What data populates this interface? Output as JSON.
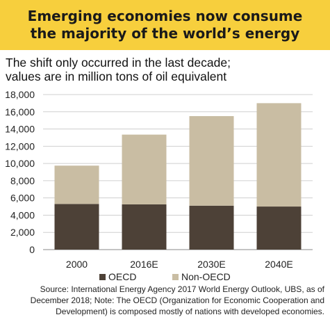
{
  "banner": {
    "line1": "Emerging economies now consume",
    "line2": "the majority of the world’s energy"
  },
  "subtitle": {
    "line1": "The shift only occurred in the last decade;",
    "line2": "values are in million tons of oil equivalent"
  },
  "footer": {
    "line1": "Source: International Energy Agency 2017 World Energy Outlook, UBS, as of",
    "line2": "December 2018; Note: The OECD (Organization for Economic Cooperation and",
    "line3": "Development) is composed mostly of nations with developed economies."
  },
  "colors": {
    "banner": "#f7cf3d",
    "oecd": "#4d4137",
    "non_oecd": "#c9bda3",
    "grid": "#cfcfcf"
  },
  "chart_data": {
    "type": "bar",
    "stacked": true,
    "categories": [
      "2000",
      "2016E",
      "2030E",
      "2040E"
    ],
    "series": [
      {
        "name": "OECD",
        "values": [
          5300,
          5250,
          5100,
          5000
        ]
      },
      {
        "name": "Non-OECD",
        "values": [
          4450,
          8100,
          10400,
          12000
        ]
      }
    ],
    "ylim": [
      0,
      18000
    ],
    "yticks": [
      "0",
      "2,000",
      "4,000",
      "6,000",
      "8,000",
      "10,000",
      "12,000",
      "14,000",
      "16,000",
      "18,000"
    ],
    "grid": true,
    "legend": "bottom"
  }
}
